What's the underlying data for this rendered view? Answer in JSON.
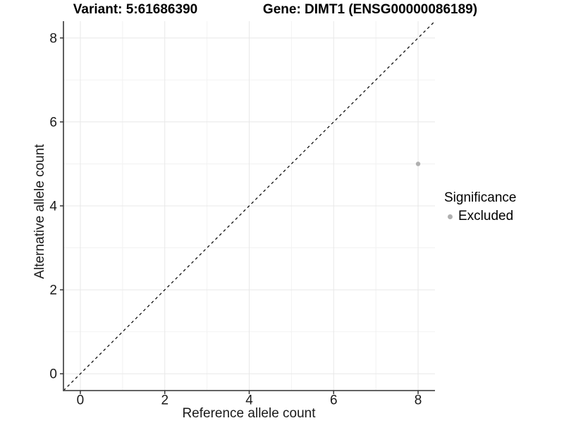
{
  "chart_data": {
    "type": "scatter",
    "title_left": "Variant: 5:61686390",
    "title_right": "Gene: DIMT1 (ENSG00000086189)",
    "xlabel": "Reference allele count",
    "ylabel": "Alternative allele count",
    "xlim": [
      -0.4,
      8.4
    ],
    "ylim": [
      -0.4,
      8.4
    ],
    "x_breaks": [
      0,
      2,
      4,
      6,
      8
    ],
    "y_breaks": [
      0,
      2,
      4,
      6,
      8
    ],
    "x_minor_breaks": [
      1,
      3,
      5,
      7
    ],
    "y_minor_breaks": [
      1,
      3,
      5,
      7
    ],
    "grid": "major+minor",
    "reference_line": {
      "style": "dashed",
      "slope": 1,
      "intercept": 0,
      "from": [
        -0.4,
        -0.4
      ],
      "to": [
        8.4,
        8.4
      ]
    },
    "series": [
      {
        "name": "Excluded",
        "color": "#b0b0b0",
        "points": [
          {
            "x": 8,
            "y": 5
          }
        ]
      }
    ],
    "legend": {
      "title": "Significance",
      "position": "right",
      "items": [
        {
          "label": "Excluded",
          "color": "#b0b0b0"
        }
      ]
    }
  },
  "colors": {
    "background": "#ffffff",
    "point": "#b0b0b0",
    "grid_major": "#e8e8e8",
    "grid_minor": "#f2f2f2",
    "axis_line": "#4d4d4d",
    "tick_mark": "#333333",
    "text": "#1a1a1a",
    "reference_line": "#000000"
  }
}
